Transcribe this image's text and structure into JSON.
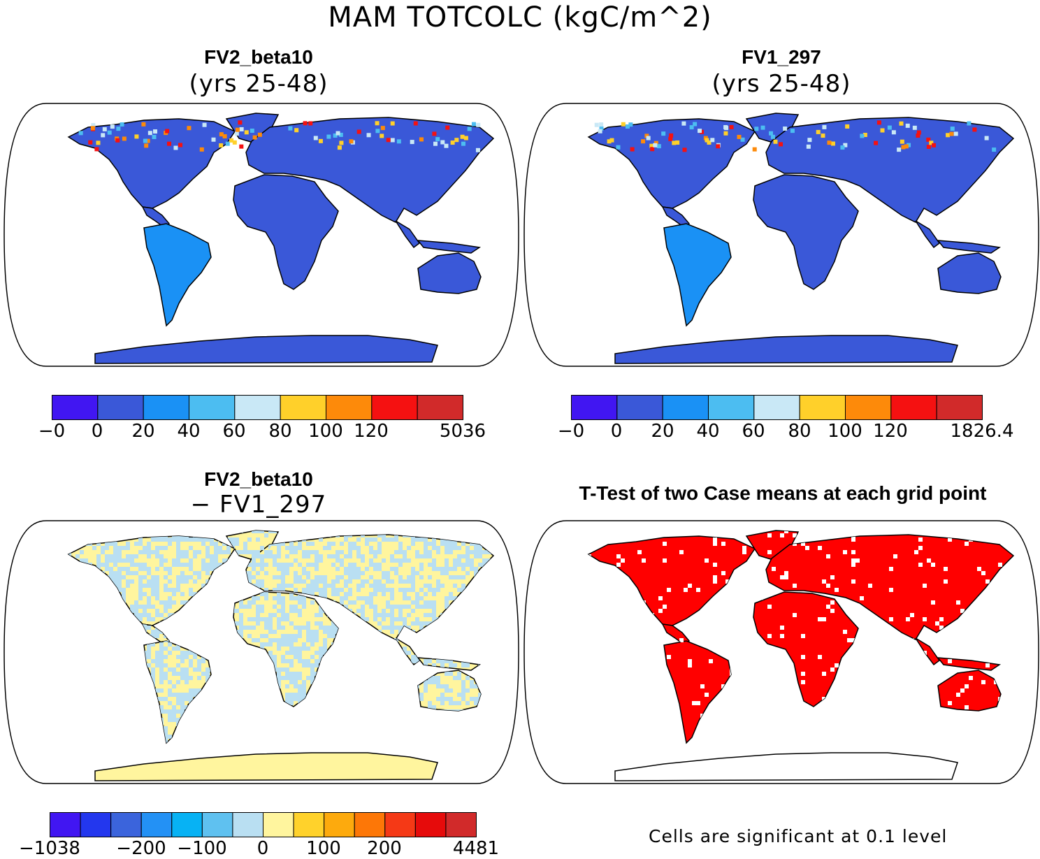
{
  "title": "MAM TOTCOLC (kgC/m^2)",
  "panels": [
    {
      "id": "case1",
      "title": "FV2_beta10",
      "subtitle": "(yrs 25-48)",
      "colorbar": {
        "colors": [
          "#4116f2",
          "#3a58d8",
          "#1a91f5",
          "#4cbdf1",
          "#c9e8f6",
          "#ffd02a",
          "#fd8a0a",
          "#f51111",
          "#d12a2a"
        ],
        "labels": [
          "−0",
          "0",
          "20",
          "40",
          "60",
          "80",
          "100",
          "120",
          "5036"
        ]
      },
      "fill": "#3a58d8"
    },
    {
      "id": "case2",
      "title": "FV1_297",
      "subtitle": "(yrs 25-48)",
      "colorbar": {
        "colors": [
          "#4116f2",
          "#3a58d8",
          "#1a91f5",
          "#4cbdf1",
          "#c9e8f6",
          "#ffd02a",
          "#fd8a0a",
          "#f51111",
          "#d12a2a"
        ],
        "labels": [
          "−0",
          "0",
          "20",
          "40",
          "60",
          "80",
          "100",
          "120",
          "1826.4"
        ]
      },
      "fill": "#3a58d8"
    },
    {
      "id": "diff",
      "title": "FV2_beta10",
      "subtitle": "− FV1_297",
      "colorbar": {
        "colors": [
          "#4116f2",
          "#2337ee",
          "#3b64dc",
          "#2391f5",
          "#07b2f4",
          "#5fc1f0",
          "#b9dff2",
          "#fff59e",
          "#ffd22b",
          "#fdaa0d",
          "#fd7707",
          "#f53916",
          "#e60b0b",
          "#d12a2a"
        ],
        "labels": [
          "−1038",
          "−200",
          "−100",
          "0",
          "100",
          "200",
          "4481"
        ]
      },
      "fill": "#fff59e"
    },
    {
      "id": "ttest",
      "title": "T-Test of two Case means at each grid point",
      "subtitle": "",
      "note": "Cells are significant at 0.1 level",
      "fill": "#ff0000"
    }
  ]
}
